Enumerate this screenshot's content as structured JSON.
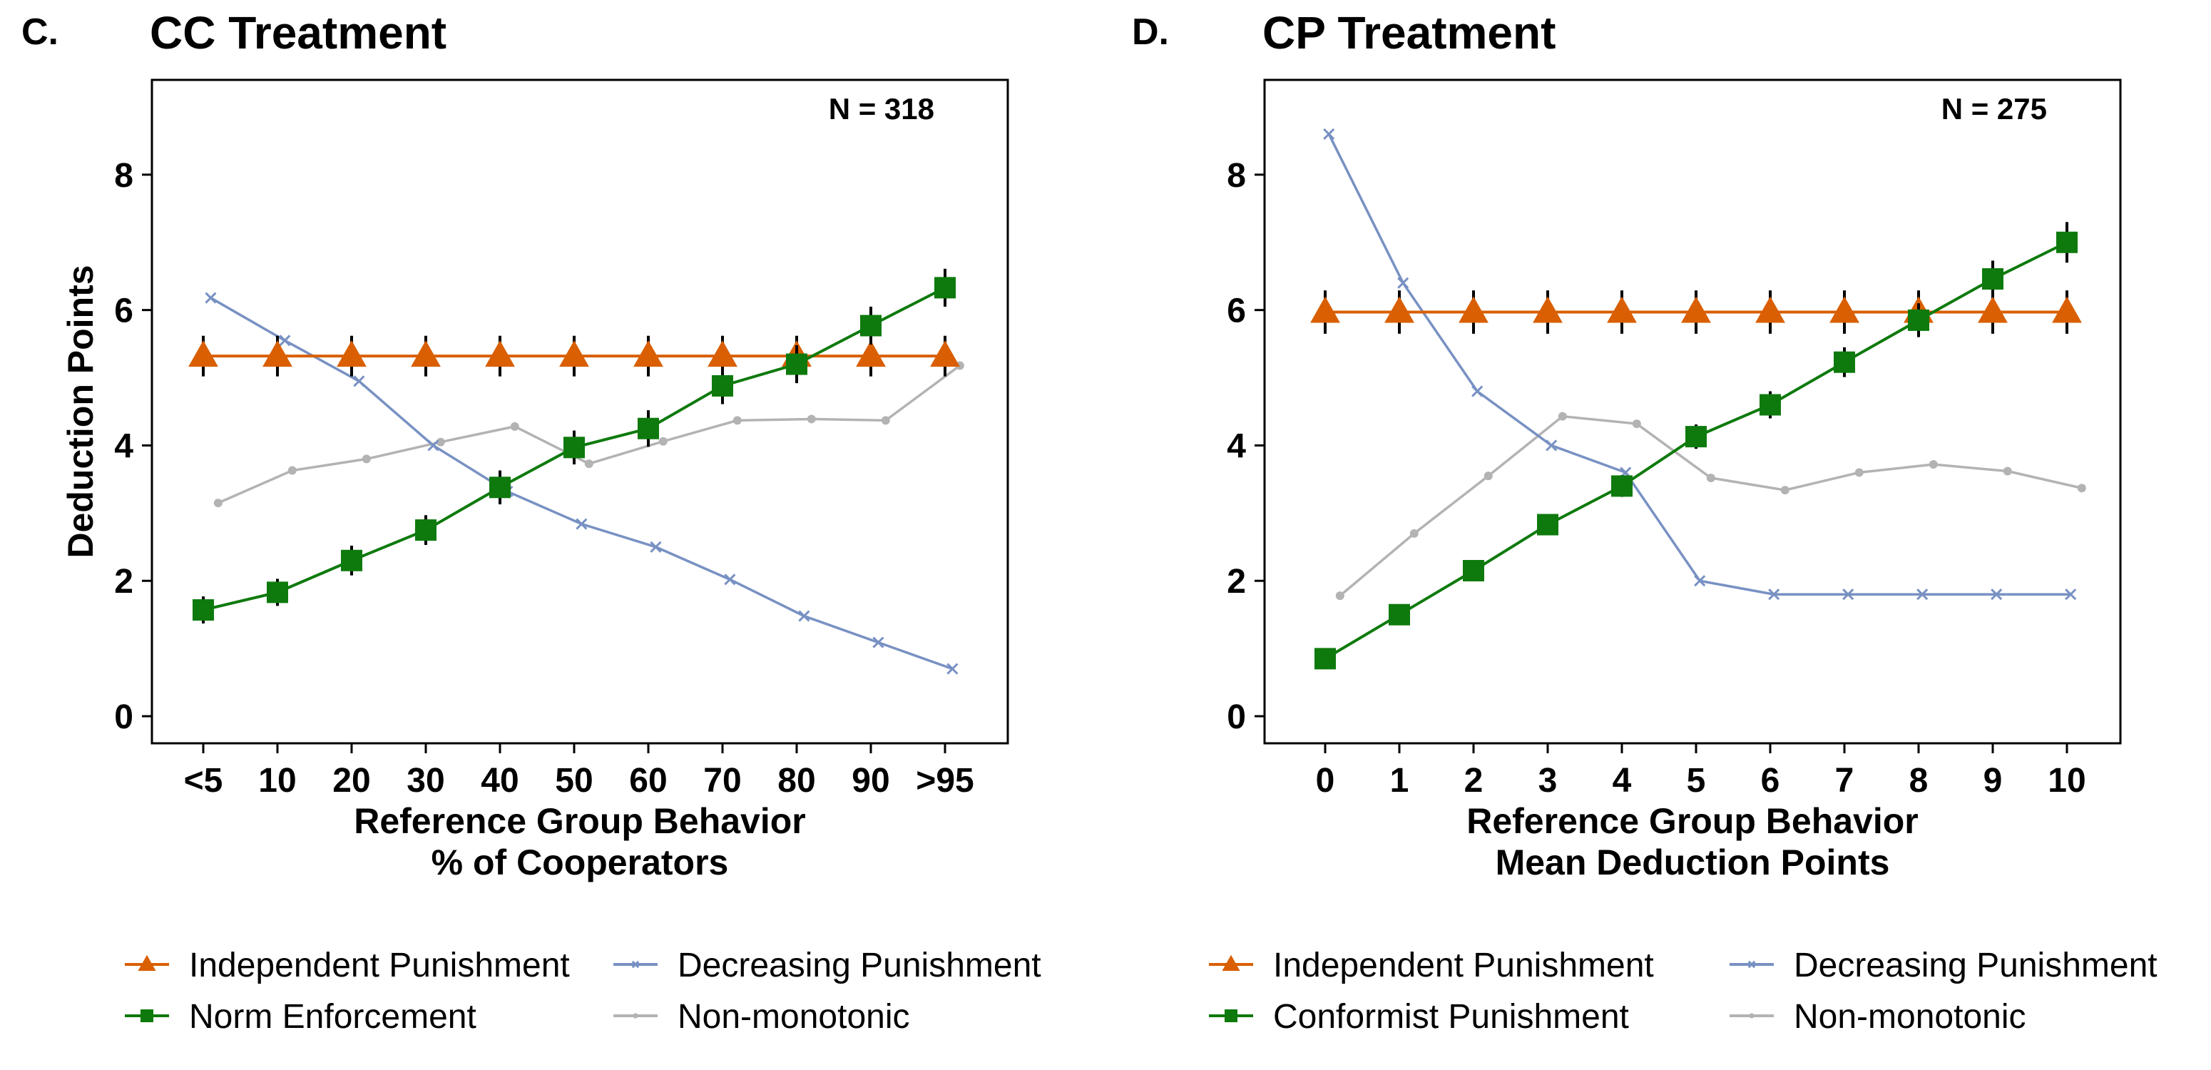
{
  "figure": {
    "panels": [
      {
        "letter": "C.",
        "title": "CC Treatment",
        "n_label": "N = 318",
        "ylabel": "Deduction Points",
        "xlabel_lines": [
          "Reference Group Behavior",
          "% of Cooperators"
        ],
        "legend": [
          {
            "label": "Independent Punishment",
            "series": "Independent Punishment"
          },
          {
            "label": "Decreasing Punishment",
            "series": "Decreasing Punishment"
          },
          {
            "label": "Norm Enforcement",
            "series": "Norm Enforcement"
          },
          {
            "label": "Non-monotonic",
            "series": "Non-monotonic"
          }
        ]
      },
      {
        "letter": "D.",
        "title": "CP Treatment",
        "n_label": "N = 275",
        "ylabel": "",
        "xlabel_lines": [
          "Reference Group Behavior",
          "Mean Deduction Points"
        ],
        "legend": [
          {
            "label": "Independent Punishment",
            "series": "Independent Punishment"
          },
          {
            "label": "Decreasing Punishment",
            "series": "Decreasing Punishment"
          },
          {
            "label": "Conformist Punishment",
            "series": "Conformist Punishment"
          },
          {
            "label": "Non-monotonic",
            "series": "Non-monotonic"
          }
        ]
      }
    ]
  },
  "chart_data": [
    {
      "type": "line",
      "title": "CC Treatment",
      "xlabel": "Reference Group Behavior % of Cooperators",
      "ylabel": "Deduction Points",
      "annotation": "N = 318",
      "categories": [
        "<5",
        "10",
        "20",
        "30",
        "40",
        "50",
        "60",
        "70",
        "80",
        "90",
        ">95"
      ],
      "ylim": [
        -0.4,
        9.4
      ],
      "yticks": [
        0,
        2,
        4,
        6,
        8
      ],
      "grid": false,
      "legend_position": "bottom",
      "series": [
        {
          "name": "Independent Punishment",
          "color": "#d95f02",
          "marker": "triangle",
          "x": [
            0,
            1,
            2,
            3,
            4,
            5,
            6,
            7,
            8,
            9,
            10
          ],
          "values": [
            5.32,
            5.32,
            5.32,
            5.32,
            5.32,
            5.32,
            5.32,
            5.32,
            5.32,
            5.32,
            5.32
          ],
          "error": [
            0.3,
            0.3,
            0.3,
            0.3,
            0.3,
            0.3,
            0.3,
            0.3,
            0.3,
            0.3,
            0.3
          ]
        },
        {
          "name": "Norm Enforcement",
          "color": "#0e7a0d",
          "marker": "square",
          "x": [
            0,
            1,
            2,
            3,
            4,
            5,
            6,
            7,
            8,
            9,
            10
          ],
          "values": [
            1.57,
            1.83,
            2.3,
            2.75,
            3.38,
            3.97,
            4.25,
            4.88,
            5.2,
            5.77,
            6.33
          ],
          "error": [
            0.2,
            0.2,
            0.22,
            0.22,
            0.25,
            0.25,
            0.27,
            0.27,
            0.28,
            0.28,
            0.28
          ]
        },
        {
          "name": "Decreasing Punishment",
          "color": "#7891c3",
          "marker": "x",
          "x": [
            0.1,
            1.1,
            2.1,
            3.1,
            4.1,
            5.1,
            6.1,
            7.1,
            8.1,
            9.1,
            10.1
          ],
          "values": [
            6.18,
            5.55,
            4.95,
            4.0,
            3.32,
            2.84,
            2.5,
            2.02,
            1.48,
            1.09,
            0.7
          ]
        },
        {
          "name": "Non-monotonic",
          "color": "#b3b3b3",
          "marker": "dot",
          "x": [
            0.2,
            1.2,
            2.2,
            3.2,
            4.2,
            5.2,
            6.2,
            7.2,
            8.2,
            9.2,
            10.2
          ],
          "values": [
            3.15,
            3.63,
            3.8,
            4.05,
            4.28,
            3.73,
            4.06,
            4.37,
            4.39,
            4.37,
            5.18
          ]
        }
      ]
    },
    {
      "type": "line",
      "title": "CP Treatment",
      "xlabel": "Reference Group Behavior Mean Deduction Points",
      "ylabel": "",
      "annotation": "N = 275",
      "categories": [
        "0",
        "1",
        "2",
        "3",
        "4",
        "5",
        "6",
        "7",
        "8",
        "9",
        "10"
      ],
      "ylim": [
        -0.4,
        9.4
      ],
      "yticks": [
        0,
        2,
        4,
        6,
        8
      ],
      "grid": false,
      "legend_position": "bottom",
      "series": [
        {
          "name": "Independent Punishment",
          "color": "#d95f02",
          "marker": "triangle",
          "x": [
            0,
            1,
            2,
            3,
            4,
            5,
            6,
            7,
            8,
            9,
            10
          ],
          "values": [
            5.97,
            5.97,
            5.97,
            5.97,
            5.97,
            5.97,
            5.97,
            5.97,
            5.97,
            5.97,
            5.97
          ],
          "error": [
            0.32,
            0.32,
            0.32,
            0.32,
            0.32,
            0.32,
            0.32,
            0.32,
            0.32,
            0.32,
            0.32
          ]
        },
        {
          "name": "Conformist Punishment",
          "color": "#0e7a0d",
          "marker": "square",
          "x": [
            0,
            1,
            2,
            3,
            4,
            5,
            6,
            7,
            8,
            9,
            10
          ],
          "values": [
            0.85,
            1.5,
            2.15,
            2.83,
            3.4,
            4.13,
            4.6,
            5.23,
            5.85,
            6.46,
            7.0
          ],
          "error": [
            0.12,
            0.13,
            0.15,
            0.15,
            0.16,
            0.18,
            0.2,
            0.22,
            0.25,
            0.27,
            0.3
          ]
        },
        {
          "name": "Decreasing Punishment",
          "color": "#7891c3",
          "marker": "x",
          "x": [
            0.05,
            1.05,
            2.05,
            3.05,
            4.05,
            5.05,
            6.05,
            7.05,
            8.05,
            9.05,
            10.05
          ],
          "values": [
            8.6,
            6.4,
            4.8,
            4.0,
            3.6,
            2.0,
            1.8,
            1.8,
            1.8,
            1.8,
            1.8
          ]
        },
        {
          "name": "Non-monotonic",
          "color": "#b3b3b3",
          "marker": "dot",
          "x": [
            0.2,
            1.2,
            2.2,
            3.2,
            4.2,
            5.2,
            6.2,
            7.2,
            8.2,
            9.2,
            10.2
          ],
          "values": [
            1.78,
            2.7,
            3.55,
            4.43,
            4.32,
            3.52,
            3.34,
            3.6,
            3.72,
            3.62,
            3.37
          ]
        }
      ]
    }
  ]
}
